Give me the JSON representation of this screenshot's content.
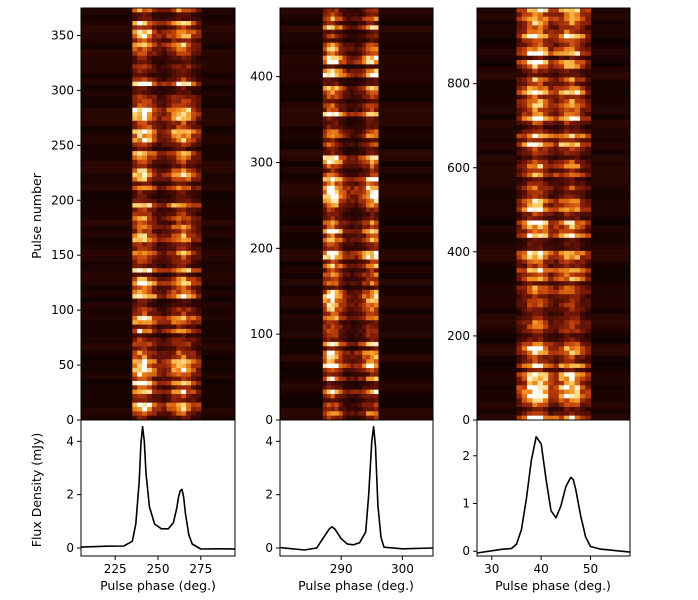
{
  "figure": {
    "ylabel_pulse": "Pulse number",
    "ylabel_flux": "Flux Density (mJy)",
    "xlabel": "Pulse phase (deg.)",
    "colormap": [
      "#000000",
      "#3a0804",
      "#7a1a08",
      "#c0400c",
      "#ef8a1c",
      "#fcd26a",
      "#ffffff"
    ]
  },
  "chart_data": [
    {
      "type": "heatmap",
      "panel": "left-waterfall",
      "ylabel": "Pulse number",
      "ylim": [
        0,
        375
      ],
      "yticks": [
        "0",
        "50",
        "100",
        "150",
        "200",
        "250",
        "300",
        "350"
      ],
      "xlim": [
        205,
        295
      ],
      "emission_window_deg": [
        235,
        275
      ],
      "component_centers_deg": [
        241,
        264
      ]
    },
    {
      "type": "line",
      "panel": "left-profile",
      "xlabel": "Pulse phase (deg.)",
      "ylabel": "Flux Density (mJy)",
      "xlim": [
        205,
        295
      ],
      "ylim": [
        -0.3,
        4.8
      ],
      "xticks": [
        "225",
        "250",
        "275"
      ],
      "yticks": [
        "0",
        "2",
        "4"
      ],
      "x": [
        205,
        220,
        230,
        235,
        237,
        239,
        240,
        241,
        242,
        243,
        245,
        248,
        252,
        256,
        259,
        261,
        262,
        263,
        264,
        265,
        266,
        268,
        270,
        275,
        285,
        295
      ],
      "y": [
        0.0,
        0.0,
        0.05,
        0.25,
        0.9,
        2.5,
        3.9,
        4.55,
        4.0,
        2.8,
        1.55,
        0.9,
        0.72,
        0.72,
        0.95,
        1.5,
        1.9,
        2.15,
        2.2,
        1.9,
        1.3,
        0.5,
        0.15,
        0.02,
        0.0,
        0.0
      ]
    },
    {
      "type": "heatmap",
      "panel": "middle-waterfall",
      "ylim": [
        0,
        480
      ],
      "yticks": [
        "0",
        "100",
        "200",
        "300",
        "400"
      ],
      "xlim": [
        280,
        305
      ],
      "emission_window_deg": [
        287,
        296
      ],
      "component_centers_deg": [
        288.5,
        295.2
      ]
    },
    {
      "type": "line",
      "panel": "middle-profile",
      "xlabel": "Pulse phase (deg.)",
      "xlim": [
        280,
        305
      ],
      "ylim": [
        -0.3,
        4.8
      ],
      "xticks": [
        "290",
        "300"
      ],
      "yticks": [
        "0",
        "2",
        "4"
      ],
      "x": [
        280,
        284,
        286,
        287,
        288,
        288.5,
        289,
        290,
        291,
        292,
        293,
        294,
        294.5,
        295,
        295.3,
        295.6,
        296,
        296.5,
        297,
        300,
        305
      ],
      "y": [
        0.0,
        0.0,
        0.05,
        0.35,
        0.7,
        0.8,
        0.7,
        0.35,
        0.15,
        0.12,
        0.2,
        0.6,
        2.0,
        4.0,
        4.55,
        3.8,
        1.6,
        0.4,
        0.08,
        0.0,
        0.0
      ]
    },
    {
      "type": "heatmap",
      "panel": "right-waterfall",
      "ylim": [
        0,
        980
      ],
      "yticks": [
        "0",
        "200",
        "400",
        "600",
        "800"
      ],
      "xlim": [
        27,
        58
      ],
      "emission_window_deg": [
        35,
        50
      ],
      "component_centers_deg": [
        39,
        46
      ]
    },
    {
      "type": "line",
      "panel": "right-profile",
      "xlabel": "Pulse phase (deg.)",
      "xlim": [
        27,
        58
      ],
      "ylim": [
        -0.1,
        2.75
      ],
      "xticks": [
        "30",
        "40",
        "50"
      ],
      "yticks": [
        "0",
        "1",
        "2"
      ],
      "x": [
        27,
        32,
        34,
        35,
        36,
        37,
        38,
        39,
        40,
        41,
        42,
        43,
        44,
        45,
        46,
        46.5,
        47,
        48,
        49,
        50,
        52,
        58
      ],
      "y": [
        0.0,
        0.0,
        0.05,
        0.15,
        0.45,
        1.1,
        1.9,
        2.4,
        2.25,
        1.5,
        0.85,
        0.7,
        0.95,
        1.35,
        1.55,
        1.5,
        1.3,
        0.75,
        0.3,
        0.1,
        0.02,
        0.0
      ]
    }
  ]
}
